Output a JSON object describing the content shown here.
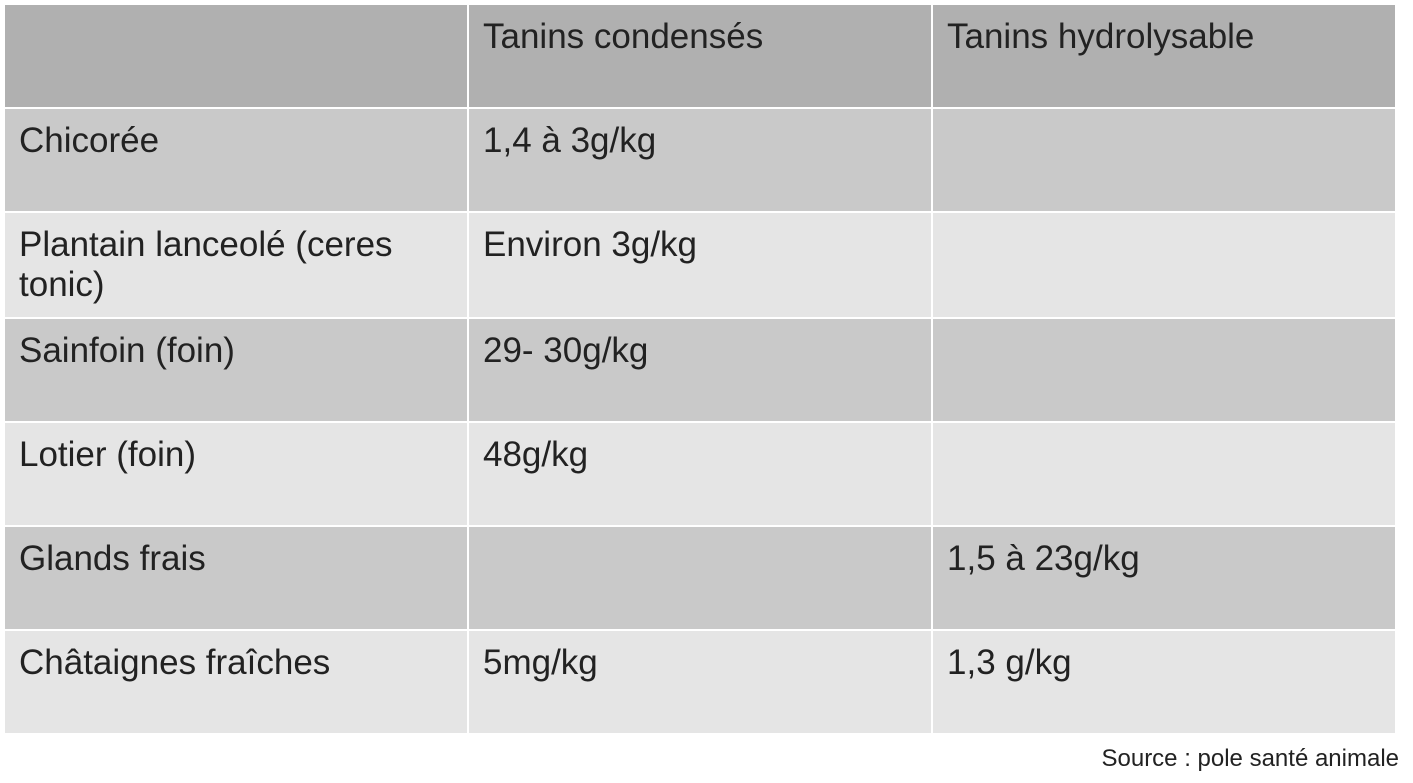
{
  "table": {
    "header": [
      "",
      "Tanins condensés",
      "Tanins hydrolysable"
    ],
    "rows": [
      [
        "Chicorée",
        "1,4 à 3g/kg",
        ""
      ],
      [
        "Plantain lanceolé (ceres tonic)",
        "Environ 3g/kg",
        ""
      ],
      [
        "Sainfoin (foin)",
        "29- 30g/kg",
        ""
      ],
      [
        "Lotier (foin)",
        "48g/kg",
        ""
      ],
      [
        "Glands frais",
        "",
        "1,5 à 23g/kg"
      ],
      [
        "Châtaignes fraîches",
        "5mg/kg",
        "1,3 g/kg"
      ]
    ]
  },
  "source": "Source : pole santé animale"
}
